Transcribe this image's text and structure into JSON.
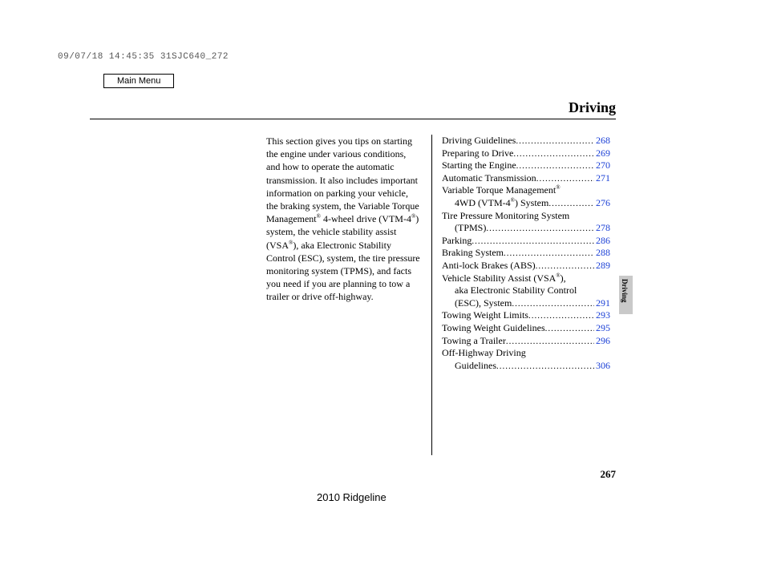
{
  "stamp": "09/07/18 14:45:35 31SJC640_272",
  "mainMenu": "Main Menu",
  "header": "Driving",
  "sideTab": "Driving",
  "intro": "This section gives you tips on starting the engine under various conditions, and how to operate the automatic transmission. It also includes important information on parking your vehicle, the braking system, the Variable Torque Management® 4-wheel drive (VTM-4®) system, the vehicle stability assist (VSA®), aka Electronic Stability Control (ESC), system, the tire pressure monitoring system (TPMS), and facts you need if you are planning to tow a trailer or drive off-highway.",
  "toc": [
    {
      "label": "Driving Guidelines",
      "page": "268",
      "indent": false,
      "cont": false
    },
    {
      "label": "Preparing to Drive",
      "page": "269",
      "indent": false,
      "cont": false
    },
    {
      "label": "Starting the Engine",
      "page": "270",
      "indent": false,
      "cont": false
    },
    {
      "label": "Automatic Transmission",
      "page": "271",
      "indent": false,
      "cont": false
    },
    {
      "label": "Variable Torque Management®",
      "page": "",
      "indent": false,
      "cont": true
    },
    {
      "label": "4WD (VTM-4®) System",
      "page": "276",
      "indent": true,
      "cont": false
    },
    {
      "label": "Tire Pressure Monitoring System",
      "page": "",
      "indent": false,
      "cont": true
    },
    {
      "label": "(TPMS)",
      "page": "278",
      "indent": true,
      "cont": false
    },
    {
      "label": "Parking",
      "page": "286",
      "indent": false,
      "cont": false
    },
    {
      "label": "Braking System",
      "page": "288",
      "indent": false,
      "cont": false
    },
    {
      "label": "Anti-lock Brakes (ABS)",
      "page": "289",
      "indent": false,
      "cont": false
    },
    {
      "label": "Vehicle Stability Assist (VSA®),",
      "page": "",
      "indent": false,
      "cont": true
    },
    {
      "label": "aka Electronic Stability Control",
      "page": "",
      "indent": true,
      "cont": true
    },
    {
      "label": "(ESC), System",
      "page": "291",
      "indent": true,
      "cont": false
    },
    {
      "label": "Towing Weight Limits",
      "page": "293",
      "indent": false,
      "cont": false
    },
    {
      "label": "Towing Weight Guidelines",
      "page": "295",
      "indent": false,
      "cont": false
    },
    {
      "label": "Towing a Trailer",
      "page": "296",
      "indent": false,
      "cont": false
    },
    {
      "label": "Off-Highway Driving",
      "page": "",
      "indent": false,
      "cont": true
    },
    {
      "label": "Guidelines",
      "page": "306",
      "indent": true,
      "cont": false
    }
  ],
  "pageNumber": "267",
  "footerModel": "2010 Ridgeline",
  "colors": {
    "link": "#1a3fd6",
    "tabBg": "#c9c9c9",
    "stamp": "#555555",
    "text": "#000000",
    "bg": "#ffffff"
  }
}
